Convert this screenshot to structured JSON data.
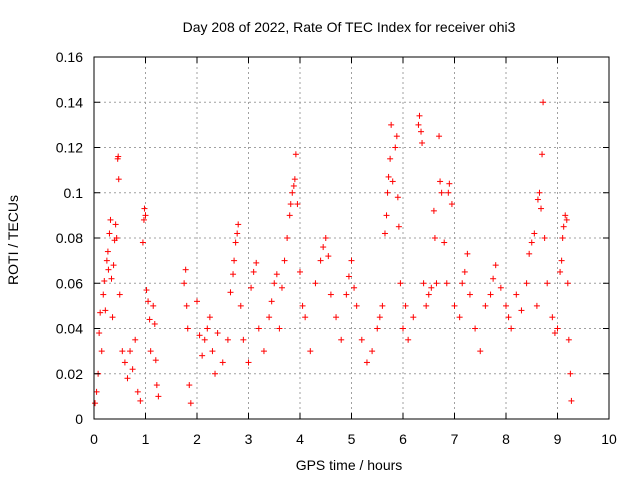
{
  "chart_data": {
    "type": "scatter",
    "title": "Day 208 of 2022, Rate Of TEC Index for receiver ohi3",
    "xlabel": "GPS time / hours",
    "ylabel": "ROTI / TECUs",
    "xlim": [
      0,
      10
    ],
    "ylim": [
      0,
      0.16
    ],
    "x_ticks": [
      "0",
      "1",
      "2",
      "3",
      "4",
      "5",
      "6",
      "7",
      "8",
      "9",
      "10"
    ],
    "y_ticks": [
      "0",
      "0.02",
      "0.04",
      "0.06",
      "0.08",
      "0.1",
      "0.12",
      "0.14",
      "0.16"
    ],
    "grid": true,
    "marker": "+",
    "color": "#ff0000",
    "series": [
      {
        "points": [
          [
            0.02,
            0.007
          ],
          [
            0.05,
            0.012
          ],
          [
            0.08,
            0.02
          ],
          [
            0.1,
            0.038
          ],
          [
            0.12,
            0.047
          ],
          [
            0.15,
            0.03
          ],
          [
            0.18,
            0.055
          ],
          [
            0.2,
            0.061
          ],
          [
            0.22,
            0.048
          ],
          [
            0.25,
            0.07
          ],
          [
            0.27,
            0.074
          ],
          [
            0.28,
            0.066
          ],
          [
            0.3,
            0.082
          ],
          [
            0.32,
            0.088
          ],
          [
            0.34,
            0.062
          ],
          [
            0.36,
            0.045
          ],
          [
            0.38,
            0.068
          ],
          [
            0.4,
            0.079
          ],
          [
            0.42,
            0.086
          ],
          [
            0.44,
            0.08
          ],
          [
            0.46,
            0.115
          ],
          [
            0.47,
            0.116
          ],
          [
            0.48,
            0.106
          ],
          [
            0.5,
            0.055
          ],
          [
            0.55,
            0.03
          ],
          [
            0.6,
            0.025
          ],
          [
            0.65,
            0.018
          ],
          [
            0.7,
            0.03
          ],
          [
            0.75,
            0.022
          ],
          [
            0.8,
            0.035
          ],
          [
            0.85,
            0.012
          ],
          [
            0.9,
            0.008
          ],
          [
            0.95,
            0.078
          ],
          [
            0.97,
            0.088
          ],
          [
            0.98,
            0.093
          ],
          [
            1.0,
            0.09
          ],
          [
            1.02,
            0.057
          ],
          [
            1.05,
            0.052
          ],
          [
            1.08,
            0.044
          ],
          [
            1.1,
            0.03
          ],
          [
            1.15,
            0.05
          ],
          [
            1.18,
            0.042
          ],
          [
            1.2,
            0.026
          ],
          [
            1.22,
            0.015
          ],
          [
            1.25,
            0.01
          ],
          [
            1.75,
            0.06
          ],
          [
            1.78,
            0.066
          ],
          [
            1.8,
            0.05
          ],
          [
            1.82,
            0.04
          ],
          [
            1.85,
            0.015
          ],
          [
            1.88,
            0.007
          ],
          [
            2.0,
            0.052
          ],
          [
            2.05,
            0.037
          ],
          [
            2.1,
            0.028
          ],
          [
            2.15,
            0.035
          ],
          [
            2.2,
            0.04
          ],
          [
            2.25,
            0.045
          ],
          [
            2.3,
            0.03
          ],
          [
            2.35,
            0.02
          ],
          [
            2.4,
            0.038
          ],
          [
            2.5,
            0.025
          ],
          [
            2.6,
            0.035
          ],
          [
            2.65,
            0.056
          ],
          [
            2.7,
            0.064
          ],
          [
            2.72,
            0.07
          ],
          [
            2.75,
            0.078
          ],
          [
            2.78,
            0.082
          ],
          [
            2.8,
            0.086
          ],
          [
            2.85,
            0.05
          ],
          [
            2.9,
            0.035
          ],
          [
            3.0,
            0.025
          ],
          [
            3.05,
            0.058
          ],
          [
            3.1,
            0.065
          ],
          [
            3.15,
            0.069
          ],
          [
            3.2,
            0.04
          ],
          [
            3.3,
            0.03
          ],
          [
            3.4,
            0.045
          ],
          [
            3.45,
            0.052
          ],
          [
            3.5,
            0.06
          ],
          [
            3.55,
            0.064
          ],
          [
            3.6,
            0.04
          ],
          [
            3.65,
            0.058
          ],
          [
            3.7,
            0.07
          ],
          [
            3.75,
            0.08
          ],
          [
            3.8,
            0.09
          ],
          [
            3.82,
            0.095
          ],
          [
            3.85,
            0.1
          ],
          [
            3.88,
            0.103
          ],
          [
            3.9,
            0.106
          ],
          [
            3.92,
            0.117
          ],
          [
            3.95,
            0.095
          ],
          [
            4.0,
            0.065
          ],
          [
            4.05,
            0.05
          ],
          [
            4.1,
            0.045
          ],
          [
            4.2,
            0.03
          ],
          [
            4.3,
            0.06
          ],
          [
            4.4,
            0.07
          ],
          [
            4.45,
            0.076
          ],
          [
            4.5,
            0.08
          ],
          [
            4.55,
            0.072
          ],
          [
            4.6,
            0.055
          ],
          [
            4.7,
            0.045
          ],
          [
            4.8,
            0.035
          ],
          [
            4.9,
            0.055
          ],
          [
            4.95,
            0.063
          ],
          [
            5.0,
            0.07
          ],
          [
            5.05,
            0.058
          ],
          [
            5.1,
            0.05
          ],
          [
            5.2,
            0.035
          ],
          [
            5.3,
            0.025
          ],
          [
            5.4,
            0.03
          ],
          [
            5.5,
            0.04
          ],
          [
            5.55,
            0.045
          ],
          [
            5.6,
            0.05
          ],
          [
            5.65,
            0.082
          ],
          [
            5.68,
            0.09
          ],
          [
            5.7,
            0.1
          ],
          [
            5.72,
            0.107
          ],
          [
            5.75,
            0.115
          ],
          [
            5.77,
            0.13
          ],
          [
            5.8,
            0.105
          ],
          [
            5.85,
            0.12
          ],
          [
            5.88,
            0.125
          ],
          [
            5.9,
            0.098
          ],
          [
            5.92,
            0.085
          ],
          [
            5.95,
            0.06
          ],
          [
            6.0,
            0.04
          ],
          [
            6.05,
            0.05
          ],
          [
            6.1,
            0.035
          ],
          [
            6.2,
            0.045
          ],
          [
            6.3,
            0.13
          ],
          [
            6.32,
            0.134
          ],
          [
            6.35,
            0.127
          ],
          [
            6.37,
            0.122
          ],
          [
            6.4,
            0.06
          ],
          [
            6.45,
            0.05
          ],
          [
            6.5,
            0.055
          ],
          [
            6.55,
            0.058
          ],
          [
            6.6,
            0.092
          ],
          [
            6.62,
            0.08
          ],
          [
            6.65,
            0.06
          ],
          [
            6.7,
            0.125
          ],
          [
            6.72,
            0.105
          ],
          [
            6.75,
            0.1
          ],
          [
            6.8,
            0.078
          ],
          [
            6.85,
            0.06
          ],
          [
            6.88,
            0.1
          ],
          [
            6.9,
            0.104
          ],
          [
            6.95,
            0.095
          ],
          [
            7.0,
            0.05
          ],
          [
            7.1,
            0.045
          ],
          [
            7.15,
            0.06
          ],
          [
            7.2,
            0.065
          ],
          [
            7.25,
            0.073
          ],
          [
            7.3,
            0.055
          ],
          [
            7.4,
            0.04
          ],
          [
            7.5,
            0.03
          ],
          [
            7.6,
            0.05
          ],
          [
            7.7,
            0.055
          ],
          [
            7.75,
            0.062
          ],
          [
            7.8,
            0.068
          ],
          [
            7.9,
            0.058
          ],
          [
            8.0,
            0.05
          ],
          [
            8.05,
            0.045
          ],
          [
            8.1,
            0.04
          ],
          [
            8.2,
            0.055
          ],
          [
            8.3,
            0.048
          ],
          [
            8.4,
            0.06
          ],
          [
            8.45,
            0.073
          ],
          [
            8.5,
            0.078
          ],
          [
            8.55,
            0.082
          ],
          [
            8.6,
            0.05
          ],
          [
            8.62,
            0.097
          ],
          [
            8.65,
            0.1
          ],
          [
            8.68,
            0.093
          ],
          [
            8.7,
            0.117
          ],
          [
            8.72,
            0.14
          ],
          [
            8.75,
            0.08
          ],
          [
            8.8,
            0.06
          ],
          [
            8.9,
            0.045
          ],
          [
            8.95,
            0.038
          ],
          [
            9.0,
            0.04
          ],
          [
            9.05,
            0.065
          ],
          [
            9.08,
            0.07
          ],
          [
            9.1,
            0.08
          ],
          [
            9.12,
            0.085
          ],
          [
            9.15,
            0.09
          ],
          [
            9.18,
            0.088
          ],
          [
            9.2,
            0.06
          ],
          [
            9.22,
            0.035
          ],
          [
            9.25,
            0.02
          ],
          [
            9.27,
            0.008
          ]
        ]
      }
    ]
  }
}
